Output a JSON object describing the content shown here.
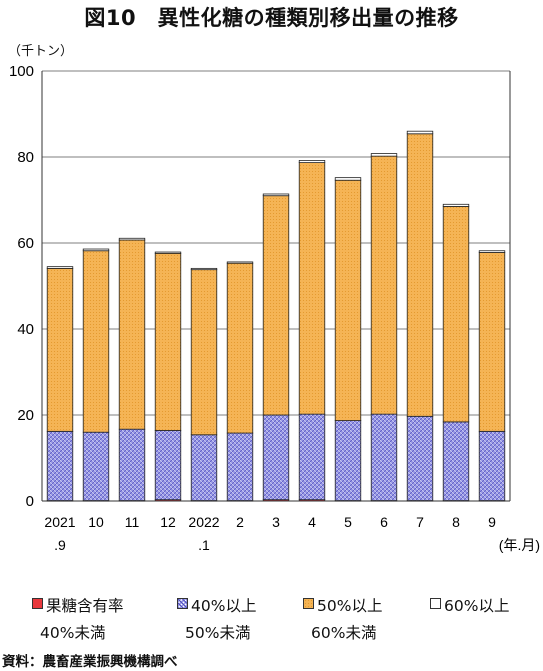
{
  "title": "図10　異性化糖の種類別移出量の推移",
  "unit_label": "（千トン）",
  "source": "資料：農畜産業振興機構調べ",
  "chart_data": {
    "type": "bar",
    "stacked": true,
    "categories": [
      "2021.9",
      "10",
      "11",
      "12",
      "2022.1",
      "2",
      "3",
      "4",
      "5",
      "6",
      "7",
      "8",
      "9"
    ],
    "x_tick_labels": [
      [
        "2021",
        ".9"
      ],
      [
        "10",
        ""
      ],
      [
        "11",
        ""
      ],
      [
        "12",
        ""
      ],
      [
        "2022",
        ".1"
      ],
      [
        "2",
        ""
      ],
      [
        "3",
        ""
      ],
      [
        "4",
        ""
      ],
      [
        "5",
        ""
      ],
      [
        "6",
        ""
      ],
      [
        "7",
        ""
      ],
      [
        "8",
        ""
      ],
      [
        "9",
        ""
      ]
    ],
    "x_unit_label": "(年.月)",
    "ylim": [
      0,
      100
    ],
    "yticks": [
      0,
      20,
      40,
      60,
      80,
      100
    ],
    "grid": true,
    "legend_position": "bottom",
    "series": [
      {
        "name": "果糖含有率 40%未満",
        "legend_line1": "果糖含有率",
        "legend_line2": "40%未満",
        "color": "#e8383d",
        "values": [
          0.1,
          0.1,
          0.1,
          0.3,
          0.1,
          0.1,
          0.3,
          0.3,
          0.1,
          0.1,
          0.1,
          0.1,
          0.1
        ]
      },
      {
        "name": "40%以上 50%未満",
        "legend_line1": "40%以上",
        "legend_line2": "50%未満",
        "color": "#8e8ee0",
        "values": [
          16.1,
          15.9,
          16.6,
          16.1,
          15.3,
          15.7,
          19.7,
          19.9,
          18.6,
          20.1,
          19.6,
          18.3,
          16.1
        ]
      },
      {
        "name": "50%以上 60%未満",
        "legend_line1": "50%以上",
        "legend_line2": "60%未満",
        "color": "#f4b050",
        "values": [
          37.9,
          42.2,
          44.0,
          41.2,
          38.4,
          39.5,
          51.0,
          58.5,
          55.9,
          60.0,
          65.7,
          50.1,
          41.6
        ]
      },
      {
        "name": "60%以上",
        "legend_line1": "60%以上",
        "legend_line2": "",
        "color": "#ffffff",
        "values": [
          0.4,
          0.4,
          0.4,
          0.3,
          0.3,
          0.3,
          0.4,
          0.5,
          0.6,
          0.6,
          0.6,
          0.5,
          0.4
        ]
      }
    ]
  }
}
